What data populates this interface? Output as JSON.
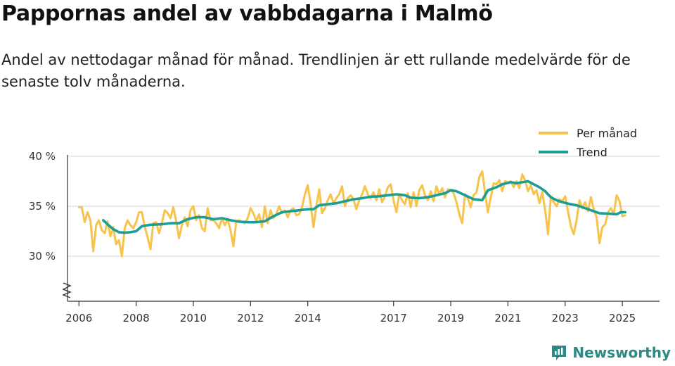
{
  "title": "Pappornas andel av vabbdagarna i Malmö",
  "subtitle": "Andel av nettodagar månad för månad. Trendlinjen är ett rullande medelvärde för de senaste tolv månaderna.",
  "brand": "Newsworthy",
  "colors": {
    "monthly": "#f8c34a",
    "trend": "#1a9e96",
    "grid": "#dddddd",
    "axis": "#333333",
    "brand": "#2a8a86"
  },
  "chart_data": {
    "type": "line",
    "title": "Pappornas andel av vabbdagarna i Malmö",
    "xlabel": "",
    "ylabel": "",
    "ylim": [
      25,
      40
    ],
    "xlim": [
      2005.6,
      2026.3
    ],
    "y_ticks": [
      {
        "value": 40,
        "label": "40 %"
      },
      {
        "value": 35,
        "label": "35 %"
      },
      {
        "value": 30,
        "label": "30 %"
      }
    ],
    "x_ticks": [
      {
        "value": 2006,
        "label": "2006"
      },
      {
        "value": 2008,
        "label": "2008"
      },
      {
        "value": 2010,
        "label": "2010"
      },
      {
        "value": 2012,
        "label": "2012"
      },
      {
        "value": 2014,
        "label": "2014"
      },
      {
        "value": 2017,
        "label": "2017"
      },
      {
        "value": 2019,
        "label": "2019"
      },
      {
        "value": 2021,
        "label": "2021"
      },
      {
        "value": 2023,
        "label": "2023"
      },
      {
        "value": 2025,
        "label": "2025"
      }
    ],
    "axis_break": true,
    "legend": {
      "position": "top-right"
    },
    "series": [
      {
        "name": "Per månad",
        "points": [
          [
            2006.0,
            34.9
          ],
          [
            2006.1,
            34.9
          ],
          [
            2006.2,
            33.4
          ],
          [
            2006.3,
            34.4
          ],
          [
            2006.4,
            33.6
          ],
          [
            2006.5,
            30.5
          ],
          [
            2006.6,
            33.1
          ],
          [
            2006.7,
            33.6
          ],
          [
            2006.8,
            32.6
          ],
          [
            2006.9,
            32.3
          ],
          [
            2007.0,
            33.5
          ],
          [
            2007.1,
            32.0
          ],
          [
            2007.2,
            32.9
          ],
          [
            2007.3,
            31.2
          ],
          [
            2007.4,
            31.6
          ],
          [
            2007.5,
            30.0
          ],
          [
            2007.6,
            32.8
          ],
          [
            2007.7,
            33.6
          ],
          [
            2007.8,
            33.1
          ],
          [
            2007.9,
            32.8
          ],
          [
            2008.0,
            33.4
          ],
          [
            2008.1,
            34.4
          ],
          [
            2008.2,
            34.4
          ],
          [
            2008.3,
            33.0
          ],
          [
            2008.4,
            31.9
          ],
          [
            2008.5,
            30.7
          ],
          [
            2008.6,
            33.3
          ],
          [
            2008.7,
            33.4
          ],
          [
            2008.8,
            32.3
          ],
          [
            2008.9,
            33.3
          ],
          [
            2009.0,
            34.6
          ],
          [
            2009.1,
            34.3
          ],
          [
            2009.2,
            33.8
          ],
          [
            2009.3,
            34.9
          ],
          [
            2009.4,
            33.5
          ],
          [
            2009.5,
            31.8
          ],
          [
            2009.6,
            33.1
          ],
          [
            2009.7,
            33.9
          ],
          [
            2009.8,
            33.0
          ],
          [
            2009.9,
            34.6
          ],
          [
            2010.0,
            35.0
          ],
          [
            2010.1,
            33.6
          ],
          [
            2010.2,
            34.1
          ],
          [
            2010.3,
            32.8
          ],
          [
            2010.4,
            32.5
          ],
          [
            2010.5,
            34.8
          ],
          [
            2010.6,
            33.6
          ],
          [
            2010.7,
            33.6
          ],
          [
            2010.8,
            33.3
          ],
          [
            2010.9,
            32.8
          ],
          [
            2011.0,
            33.8
          ],
          [
            2011.1,
            33.1
          ],
          [
            2011.2,
            33.7
          ],
          [
            2011.3,
            32.6
          ],
          [
            2011.4,
            31.0
          ],
          [
            2011.5,
            33.5
          ],
          [
            2011.6,
            33.6
          ],
          [
            2011.7,
            33.4
          ],
          [
            2011.8,
            33.3
          ],
          [
            2011.9,
            33.8
          ],
          [
            2012.0,
            34.8
          ],
          [
            2012.1,
            34.3
          ],
          [
            2012.2,
            33.5
          ],
          [
            2012.3,
            34.2
          ],
          [
            2012.4,
            32.9
          ],
          [
            2012.5,
            35.0
          ],
          [
            2012.6,
            33.3
          ],
          [
            2012.7,
            34.6
          ],
          [
            2012.8,
            33.8
          ],
          [
            2012.9,
            34.2
          ],
          [
            2013.0,
            35.0
          ],
          [
            2013.1,
            34.3
          ],
          [
            2013.2,
            34.6
          ],
          [
            2013.3,
            33.9
          ],
          [
            2013.4,
            34.6
          ],
          [
            2013.5,
            34.8
          ],
          [
            2013.6,
            34.1
          ],
          [
            2013.7,
            34.2
          ],
          [
            2013.8,
            34.9
          ],
          [
            2013.9,
            36.2
          ],
          [
            2014.0,
            37.1
          ],
          [
            2014.1,
            35.3
          ],
          [
            2014.2,
            32.9
          ],
          [
            2014.3,
            35.0
          ],
          [
            2014.4,
            36.7
          ],
          [
            2014.5,
            34.3
          ],
          [
            2014.6,
            34.8
          ],
          [
            2014.7,
            35.6
          ],
          [
            2014.8,
            36.2
          ],
          [
            2014.9,
            35.3
          ],
          [
            2015.0,
            35.8
          ],
          [
            2015.1,
            36.2
          ],
          [
            2015.2,
            37.0
          ],
          [
            2015.3,
            35.0
          ],
          [
            2015.4,
            35.8
          ],
          [
            2015.5,
            36.1
          ],
          [
            2015.6,
            35.7
          ],
          [
            2015.7,
            34.7
          ],
          [
            2015.8,
            35.6
          ],
          [
            2015.9,
            36.2
          ],
          [
            2016.0,
            37.0
          ],
          [
            2016.1,
            36.2
          ],
          [
            2016.2,
            35.8
          ],
          [
            2016.3,
            36.4
          ],
          [
            2016.4,
            35.6
          ],
          [
            2016.5,
            36.7
          ],
          [
            2016.6,
            35.4
          ],
          [
            2016.7,
            36.0
          ],
          [
            2016.8,
            36.9
          ],
          [
            2016.9,
            37.2
          ],
          [
            2017.0,
            35.6
          ],
          [
            2017.1,
            34.4
          ],
          [
            2017.2,
            36.2
          ],
          [
            2017.3,
            35.6
          ],
          [
            2017.4,
            35.2
          ],
          [
            2017.5,
            36.3
          ],
          [
            2017.6,
            34.9
          ],
          [
            2017.7,
            36.4
          ],
          [
            2017.8,
            35.0
          ],
          [
            2017.9,
            36.6
          ],
          [
            2018.0,
            37.1
          ],
          [
            2018.1,
            36.1
          ],
          [
            2018.2,
            35.6
          ],
          [
            2018.3,
            36.5
          ],
          [
            2018.4,
            35.5
          ],
          [
            2018.5,
            37.0
          ],
          [
            2018.6,
            36.2
          ],
          [
            2018.7,
            36.8
          ],
          [
            2018.8,
            35.9
          ],
          [
            2018.9,
            36.7
          ],
          [
            2019.0,
            36.6
          ],
          [
            2019.1,
            36.3
          ],
          [
            2019.2,
            35.4
          ],
          [
            2019.3,
            34.2
          ],
          [
            2019.4,
            33.3
          ],
          [
            2019.5,
            36.2
          ],
          [
            2019.6,
            35.8
          ],
          [
            2019.7,
            34.9
          ],
          [
            2019.8,
            36.1
          ],
          [
            2019.9,
            36.4
          ],
          [
            2020.0,
            37.9
          ],
          [
            2020.1,
            38.5
          ],
          [
            2020.2,
            36.3
          ],
          [
            2020.3,
            34.4
          ],
          [
            2020.4,
            35.9
          ],
          [
            2020.5,
            37.3
          ],
          [
            2020.6,
            37.2
          ],
          [
            2020.7,
            37.6
          ],
          [
            2020.8,
            36.5
          ],
          [
            2020.9,
            37.5
          ],
          [
            2021.0,
            37.4
          ],
          [
            2021.1,
            37.5
          ],
          [
            2021.2,
            36.9
          ],
          [
            2021.3,
            37.5
          ],
          [
            2021.4,
            36.8
          ],
          [
            2021.5,
            38.2
          ],
          [
            2021.6,
            37.6
          ],
          [
            2021.7,
            36.5
          ],
          [
            2021.8,
            37.1
          ],
          [
            2021.9,
            36.2
          ],
          [
            2022.0,
            36.6
          ],
          [
            2022.1,
            35.3
          ],
          [
            2022.2,
            36.4
          ],
          [
            2022.3,
            34.6
          ],
          [
            2022.4,
            32.2
          ],
          [
            2022.5,
            36.0
          ],
          [
            2022.6,
            35.4
          ],
          [
            2022.7,
            35.0
          ],
          [
            2022.8,
            35.7
          ],
          [
            2022.9,
            35.5
          ],
          [
            2023.0,
            36.0
          ],
          [
            2023.1,
            34.5
          ],
          [
            2023.2,
            33.0
          ],
          [
            2023.3,
            32.2
          ],
          [
            2023.4,
            33.6
          ],
          [
            2023.5,
            35.6
          ],
          [
            2023.6,
            34.8
          ],
          [
            2023.7,
            35.4
          ],
          [
            2023.8,
            34.5
          ],
          [
            2023.9,
            35.9
          ],
          [
            2024.0,
            34.7
          ],
          [
            2024.1,
            33.9
          ],
          [
            2024.2,
            31.3
          ],
          [
            2024.3,
            32.9
          ],
          [
            2024.4,
            33.2
          ],
          [
            2024.5,
            34.4
          ],
          [
            2024.6,
            34.8
          ],
          [
            2024.7,
            34.2
          ],
          [
            2024.8,
            36.1
          ],
          [
            2024.9,
            35.5
          ],
          [
            2025.0,
            34.0
          ],
          [
            2025.1,
            34.1
          ]
        ]
      },
      {
        "name": "Trend",
        "points": [
          [
            2006.85,
            33.6
          ],
          [
            2007.0,
            33.2
          ],
          [
            2007.2,
            32.7
          ],
          [
            2007.4,
            32.4
          ],
          [
            2007.6,
            32.35
          ],
          [
            2007.8,
            32.4
          ],
          [
            2008.0,
            32.5
          ],
          [
            2008.2,
            33.0
          ],
          [
            2008.5,
            33.15
          ],
          [
            2008.9,
            33.2
          ],
          [
            2009.2,
            33.3
          ],
          [
            2009.5,
            33.3
          ],
          [
            2009.8,
            33.7
          ],
          [
            2010.1,
            33.9
          ],
          [
            2010.4,
            33.9
          ],
          [
            2010.7,
            33.7
          ],
          [
            2011.0,
            33.8
          ],
          [
            2011.3,
            33.6
          ],
          [
            2011.6,
            33.45
          ],
          [
            2011.9,
            33.4
          ],
          [
            2012.2,
            33.4
          ],
          [
            2012.5,
            33.5
          ],
          [
            2012.8,
            34.0
          ],
          [
            2013.1,
            34.4
          ],
          [
            2013.4,
            34.5
          ],
          [
            2013.7,
            34.6
          ],
          [
            2014.0,
            34.7
          ],
          [
            2014.2,
            34.7
          ],
          [
            2014.4,
            35.1
          ],
          [
            2014.7,
            35.2
          ],
          [
            2015.0,
            35.3
          ],
          [
            2015.3,
            35.5
          ],
          [
            2015.6,
            35.7
          ],
          [
            2015.9,
            35.8
          ],
          [
            2016.2,
            35.95
          ],
          [
            2016.5,
            36.0
          ],
          [
            2016.8,
            36.1
          ],
          [
            2017.1,
            36.2
          ],
          [
            2017.4,
            36.1
          ],
          [
            2017.6,
            35.85
          ],
          [
            2017.9,
            35.8
          ],
          [
            2018.2,
            35.9
          ],
          [
            2018.5,
            36.1
          ],
          [
            2018.8,
            36.3
          ],
          [
            2019.0,
            36.6
          ],
          [
            2019.2,
            36.5
          ],
          [
            2019.5,
            36.1
          ],
          [
            2019.8,
            35.7
          ],
          [
            2020.1,
            35.6
          ],
          [
            2020.3,
            36.6
          ],
          [
            2020.6,
            36.9
          ],
          [
            2020.8,
            37.2
          ],
          [
            2021.1,
            37.4
          ],
          [
            2021.3,
            37.3
          ],
          [
            2021.5,
            37.4
          ],
          [
            2021.7,
            37.5
          ],
          [
            2021.9,
            37.2
          ],
          [
            2022.1,
            36.9
          ],
          [
            2022.3,
            36.5
          ],
          [
            2022.5,
            35.9
          ],
          [
            2022.7,
            35.6
          ],
          [
            2022.9,
            35.4
          ],
          [
            2023.2,
            35.2
          ],
          [
            2023.4,
            35.1
          ],
          [
            2023.7,
            34.8
          ],
          [
            2024.0,
            34.5
          ],
          [
            2024.2,
            34.3
          ],
          [
            2024.5,
            34.25
          ],
          [
            2024.8,
            34.2
          ],
          [
            2024.95,
            34.4
          ],
          [
            2025.1,
            34.4
          ]
        ]
      }
    ]
  }
}
